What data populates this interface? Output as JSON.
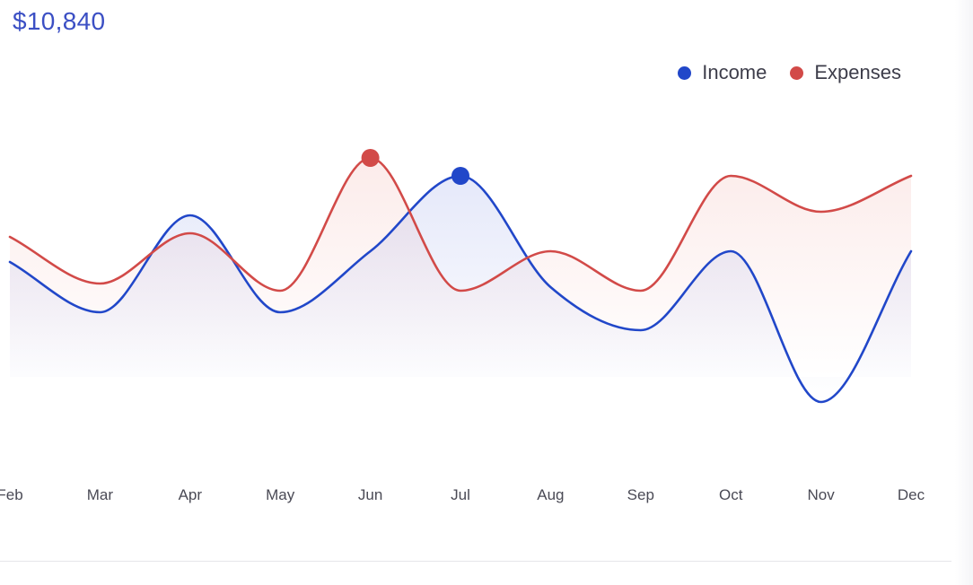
{
  "header": {
    "total_value": "$10,840"
  },
  "legend": [
    {
      "label": "Income",
      "color": "#2147c9"
    },
    {
      "label": "Expenses",
      "color": "#d24a48"
    }
  ],
  "chart_data": {
    "type": "line",
    "smooth": true,
    "categories": [
      "Feb",
      "Mar",
      "Apr",
      "May",
      "Jun",
      "Jul",
      "Aug",
      "Sep",
      "Oct",
      "Nov",
      "Dec"
    ],
    "series": [
      {
        "name": "Income",
        "color": "#2147c9",
        "values": [
          52,
          38,
          65,
          38,
          55,
          76,
          45,
          33,
          55,
          13,
          55
        ],
        "highlight_index": 5
      },
      {
        "name": "Expenses",
        "color": "#d24a48",
        "values": [
          59,
          46,
          60,
          44,
          81,
          44,
          55,
          44,
          76,
          66,
          76
        ],
        "highlight_index": 4
      }
    ],
    "ylim": [
      0,
      100
    ],
    "grid": false,
    "legend_position": "top-right"
  }
}
